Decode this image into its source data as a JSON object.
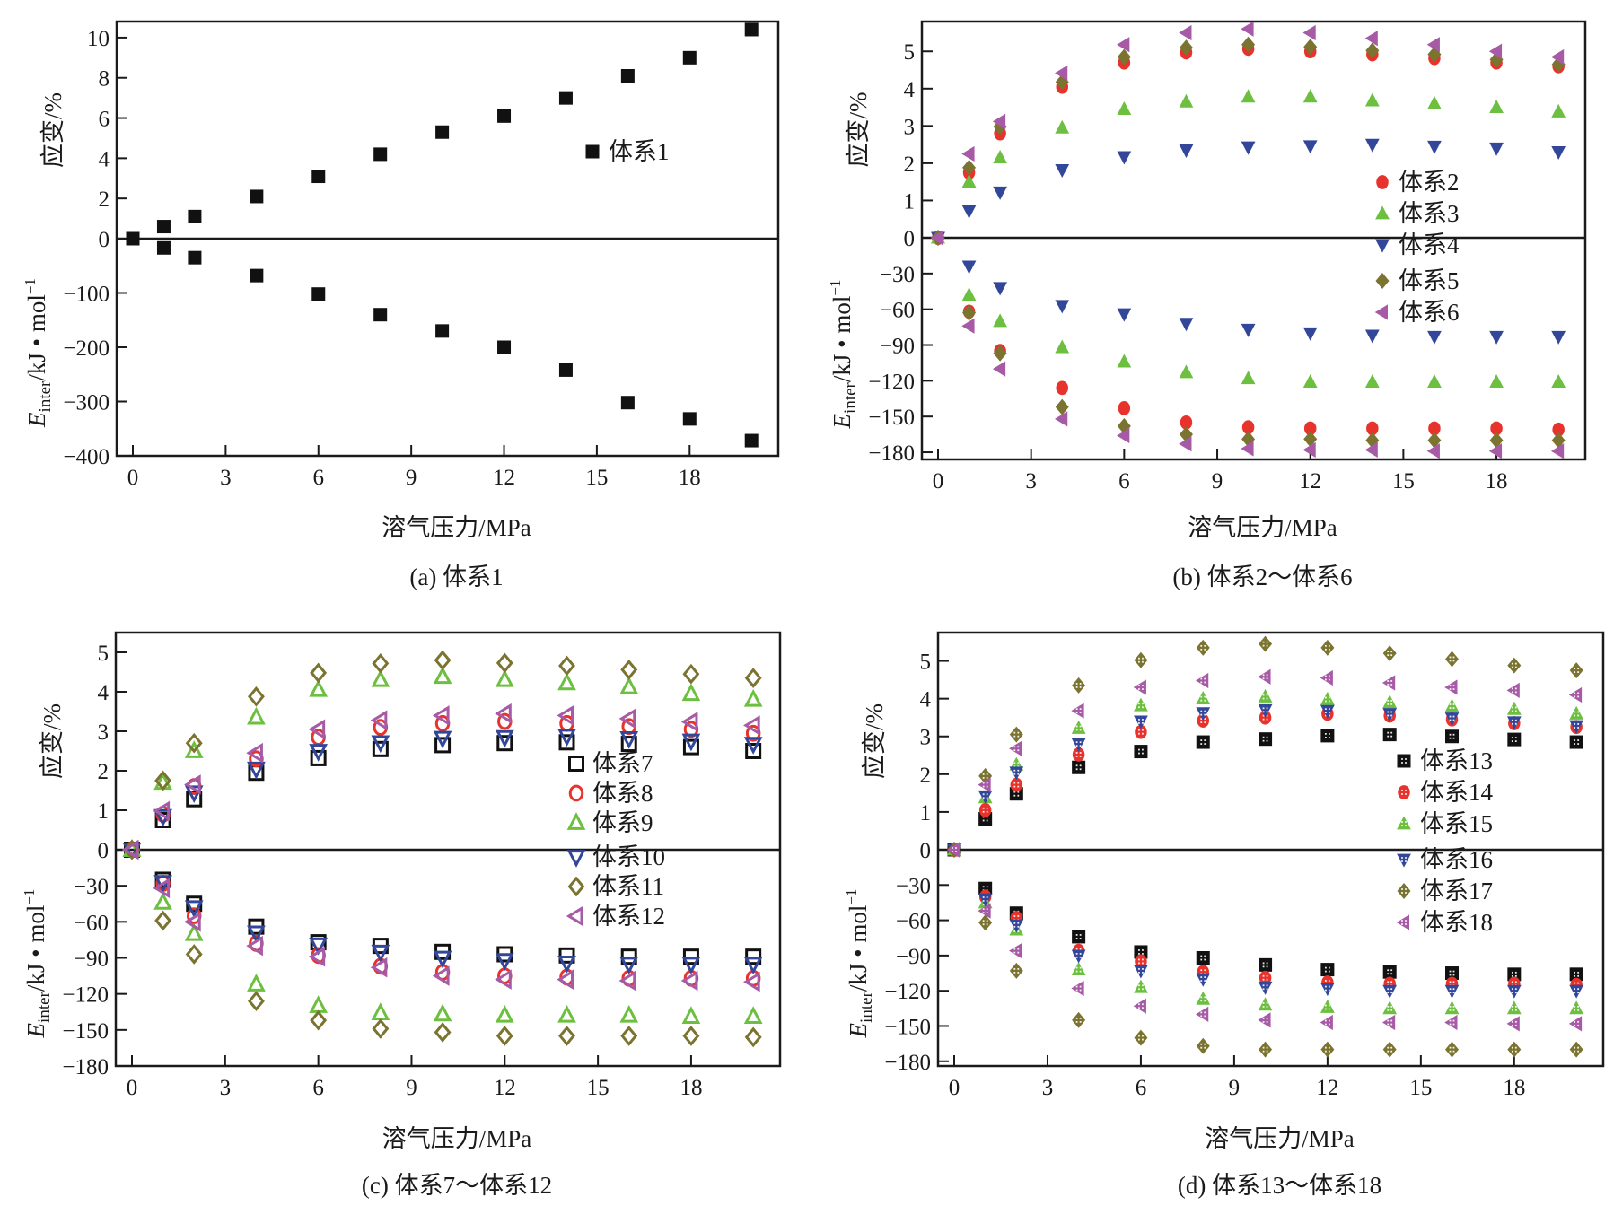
{
  "figure_title": "",
  "chart_data": [
    {
      "type": "scatter",
      "panel": "a",
      "caption": "(a) 体系1",
      "xlabel": "溶气压力/MPa",
      "ylabel_upper": "应变/%",
      "ylabel_lower": "E_inter/kJ・mol⁻¹",
      "ylabel_lower_main": "E",
      "ylabel_lower_sub": "inter",
      "ylabel_lower_rest": "/kJ • mol",
      "ylabel_lower_sup": "−1",
      "xlim": [
        -0.5,
        20.5
      ],
      "x_ticks": [
        0,
        3,
        6,
        9,
        12,
        15,
        18
      ],
      "x_tick_labels": [
        "0",
        "3",
        "6",
        "9",
        "12",
        "15",
        "18"
      ],
      "upper_ylim": [
        0,
        10.8
      ],
      "upper_y_ticks": [
        0,
        2,
        4,
        6,
        8,
        10
      ],
      "upper_y_tick_labels": [
        "0",
        "2",
        "4",
        "6",
        "8",
        "10"
      ],
      "lower_ylim": [
        -400,
        0
      ],
      "lower_y_ticks": [
        -100,
        -200,
        -300,
        -400
      ],
      "lower_y_tick_labels": [
        "−100",
        "−200",
        "−300",
        "−400"
      ],
      "legend_position": "center-right",
      "x": [
        0,
        1,
        2,
        4,
        6,
        8,
        10,
        12,
        14,
        16,
        18,
        20
      ],
      "series": [
        {
          "name": "体系1",
          "marker": "square-filled",
          "color": "#111111",
          "strain": [
            0,
            0.6,
            1.1,
            2.1,
            3.1,
            4.2,
            5.3,
            6.1,
            7.0,
            8.1,
            9.0,
            10.4
          ],
          "energy": [
            0,
            -17,
            -35,
            -68,
            -102,
            -140,
            -170,
            -200,
            -242,
            -302,
            -332,
            -372
          ]
        }
      ]
    },
    {
      "type": "scatter",
      "panel": "b",
      "caption": "(b) 体系2～体系6",
      "xlabel": "溶气压力/MPa",
      "ylabel_upper": "应变/%",
      "ylabel_lower_main": "E",
      "ylabel_lower_sub": "inter",
      "ylabel_lower_rest": "/kJ • mol",
      "ylabel_lower_sup": "−1",
      "xlim": [
        -0.5,
        20.5
      ],
      "x_ticks": [
        0,
        3,
        6,
        9,
        12,
        15,
        18
      ],
      "x_tick_labels": [
        "0",
        "3",
        "6",
        "9",
        "12",
        "15",
        "18"
      ],
      "upper_ylim": [
        0,
        5.8
      ],
      "upper_y_ticks": [
        0,
        1,
        2,
        3,
        4,
        5
      ],
      "upper_y_tick_labels": [
        "0",
        "1",
        "2",
        "3",
        "4",
        "5"
      ],
      "lower_ylim": [
        -186,
        0
      ],
      "lower_y_ticks": [
        -30,
        -60,
        -90,
        -120,
        -150,
        -180
      ],
      "lower_y_tick_labels": [
        "−30",
        "−60",
        "−90",
        "−120",
        "−150",
        "−180"
      ],
      "legend_position": "right-center",
      "x": [
        0,
        1,
        2,
        4,
        6,
        8,
        10,
        12,
        14,
        16,
        18,
        20
      ],
      "series": [
        {
          "name": "体系2",
          "marker": "circle-filled",
          "color": "#e8322c",
          "strain": [
            0,
            1.75,
            2.8,
            4.05,
            4.7,
            4.97,
            5.07,
            5.0,
            4.92,
            4.82,
            4.7,
            4.6
          ],
          "energy": [
            0,
            -62,
            -95,
            -126,
            -143,
            -155,
            -159,
            -160,
            -160,
            -160,
            -160,
            -161
          ]
        },
        {
          "name": "体系3",
          "marker": "triangle-up-filled",
          "color": "#6cbf3f",
          "strain": [
            0,
            1.5,
            2.15,
            2.95,
            3.45,
            3.65,
            3.78,
            3.78,
            3.68,
            3.6,
            3.5,
            3.38
          ],
          "energy": [
            0,
            -48,
            -70,
            -92,
            -104,
            -113,
            -118,
            -121,
            -121,
            -121,
            -121,
            -121
          ]
        },
        {
          "name": "体系4",
          "marker": "triangle-down-filled",
          "color": "#33479a",
          "strain": [
            0,
            0.72,
            1.22,
            1.82,
            2.17,
            2.35,
            2.43,
            2.46,
            2.5,
            2.45,
            2.4,
            2.3
          ],
          "energy": [
            0,
            -24,
            -42,
            -57,
            -64,
            -72,
            -77,
            -80,
            -82,
            -83,
            -83,
            -83
          ]
        },
        {
          "name": "体系5",
          "marker": "diamond-filled",
          "color": "#7b7430",
          "strain": [
            0,
            1.88,
            2.98,
            4.18,
            4.85,
            5.1,
            5.18,
            5.12,
            5.02,
            4.92,
            4.78,
            4.65
          ],
          "energy": [
            0,
            -63,
            -97,
            -142,
            -158,
            -165,
            -169,
            -169,
            -170,
            -170,
            -170,
            -170
          ]
        },
        {
          "name": "体系6",
          "marker": "triangle-left-filled",
          "color": "#a75aa6",
          "strain": [
            0,
            2.25,
            3.12,
            4.42,
            5.18,
            5.5,
            5.6,
            5.5,
            5.35,
            5.18,
            5.0,
            4.85
          ],
          "energy": [
            0,
            -74,
            -110,
            -152,
            -166,
            -173,
            -177,
            -178,
            -178,
            -179,
            -179,
            -179
          ]
        }
      ]
    },
    {
      "type": "scatter",
      "panel": "c",
      "caption": "(c) 体系7～体系12",
      "xlabel": "溶气压力/MPa",
      "ylabel_upper": "应变/%",
      "ylabel_lower_main": "E",
      "ylabel_lower_sub": "inter",
      "ylabel_lower_rest": "/kJ • mol",
      "ylabel_lower_sup": "−1",
      "xlim": [
        -0.5,
        20.5
      ],
      "x_ticks": [
        0,
        3,
        6,
        9,
        12,
        15,
        18
      ],
      "x_tick_labels": [
        "0",
        "3",
        "6",
        "9",
        "12",
        "15",
        "18"
      ],
      "upper_ylim": [
        0,
        5.5
      ],
      "upper_y_ticks": [
        0,
        1,
        2,
        3,
        4,
        5
      ],
      "upper_y_tick_labels": [
        "0",
        "1",
        "2",
        "3",
        "4",
        "5"
      ],
      "lower_ylim": [
        -180,
        0
      ],
      "lower_y_ticks": [
        -30,
        -60,
        -90,
        -120,
        -150,
        -180
      ],
      "lower_y_tick_labels": [
        "−30",
        "−60",
        "−90",
        "−120",
        "−150",
        "−180"
      ],
      "legend_position": "right-center",
      "x": [
        0,
        1,
        2,
        4,
        6,
        8,
        10,
        12,
        14,
        16,
        18,
        20
      ],
      "series": [
        {
          "name": "体系7",
          "marker": "square-open",
          "color": "#111111",
          "strain": [
            0,
            0.75,
            1.28,
            1.95,
            2.32,
            2.55,
            2.65,
            2.7,
            2.72,
            2.68,
            2.6,
            2.5
          ],
          "energy": [
            0,
            -25,
            -45,
            -64,
            -77,
            -80,
            -85,
            -87,
            -88,
            -89,
            -89,
            -89
          ]
        },
        {
          "name": "体系8",
          "marker": "circle-open",
          "color": "#e8322c",
          "strain": [
            0,
            0.9,
            1.6,
            2.3,
            2.85,
            3.1,
            3.2,
            3.25,
            3.2,
            3.12,
            3.05,
            2.95
          ],
          "energy": [
            0,
            -28,
            -55,
            -78,
            -88,
            -97,
            -102,
            -105,
            -106,
            -107,
            -107,
            -107
          ]
        },
        {
          "name": "体系9",
          "marker": "triangle-up-open",
          "color": "#6cbf3f",
          "strain": [
            0,
            1.7,
            2.5,
            3.35,
            4.05,
            4.3,
            4.38,
            4.3,
            4.22,
            4.12,
            3.95,
            3.8
          ],
          "energy": [
            0,
            -44,
            -70,
            -112,
            -130,
            -136,
            -137,
            -138,
            -138,
            -138,
            -139,
            -139
          ]
        },
        {
          "name": "体系10",
          "marker": "triangle-down-open",
          "color": "#33479a",
          "strain": [
            0,
            0.85,
            1.45,
            2.05,
            2.5,
            2.72,
            2.83,
            2.85,
            2.88,
            2.82,
            2.76,
            2.68
          ],
          "energy": [
            0,
            -27,
            -48,
            -69,
            -79,
            -85,
            -90,
            -92,
            -94,
            -95,
            -95,
            -95
          ]
        },
        {
          "name": "体系11",
          "marker": "diamond-open",
          "color": "#7b7430",
          "strain": [
            0,
            1.75,
            2.7,
            3.88,
            4.48,
            4.72,
            4.8,
            4.73,
            4.66,
            4.56,
            4.45,
            4.35
          ],
          "energy": [
            0,
            -59,
            -87,
            -126,
            -142,
            -149,
            -152,
            -155,
            -155,
            -155,
            -155,
            -156
          ]
        },
        {
          "name": "体系12",
          "marker": "triangle-left-open",
          "color": "#a75aa6",
          "strain": [
            0,
            0.98,
            1.65,
            2.45,
            3.05,
            3.28,
            3.4,
            3.45,
            3.4,
            3.32,
            3.24,
            3.15
          ],
          "energy": [
            0,
            -32,
            -60,
            -80,
            -89,
            -98,
            -105,
            -108,
            -108,
            -109,
            -109,
            -110
          ]
        }
      ]
    },
    {
      "type": "scatter",
      "panel": "d",
      "caption": "(d) 体系13～体系18",
      "xlabel": "溶气压力/MPa",
      "ylabel_upper": "应变/%",
      "ylabel_lower_main": "E",
      "ylabel_lower_sub": "inter",
      "ylabel_lower_rest": "/kJ • mol",
      "ylabel_lower_sup": "−1",
      "xlim": [
        -0.5,
        20.5
      ],
      "x_ticks": [
        0,
        3,
        6,
        9,
        12,
        15,
        18
      ],
      "x_tick_labels": [
        "0",
        "3",
        "6",
        "9",
        "12",
        "15",
        "18"
      ],
      "upper_ylim": [
        0,
        5.75
      ],
      "upper_y_ticks": [
        0,
        1,
        2,
        3,
        4,
        5
      ],
      "upper_y_tick_labels": [
        "0",
        "1",
        "2",
        "3",
        "4",
        "5"
      ],
      "lower_ylim": [
        -184,
        0
      ],
      "lower_y_ticks": [
        -30,
        -60,
        -90,
        -120,
        -150,
        -180
      ],
      "lower_y_tick_labels": [
        "−30",
        "−60",
        "−90",
        "−120",
        "−150",
        "−180"
      ],
      "legend_position": "right-center",
      "x": [
        0,
        1,
        2,
        4,
        6,
        8,
        10,
        12,
        14,
        16,
        18,
        20
      ],
      "series": [
        {
          "name": "体系13",
          "marker": "square-filled-dotted",
          "color": "#111111",
          "strain": [
            0,
            0.82,
            1.48,
            2.18,
            2.6,
            2.85,
            2.93,
            3.02,
            3.05,
            3.0,
            2.92,
            2.85
          ],
          "energy": [
            0,
            -33,
            -54,
            -74,
            -87,
            -92,
            -98,
            -102,
            -104,
            -105,
            -106,
            -106
          ]
        },
        {
          "name": "体系14",
          "marker": "circle-filled-dotted",
          "color": "#e8322c",
          "strain": [
            0,
            1.05,
            1.72,
            2.52,
            3.12,
            3.42,
            3.5,
            3.6,
            3.55,
            3.45,
            3.35,
            3.25
          ],
          "energy": [
            0,
            -40,
            -58,
            -86,
            -95,
            -104,
            -109,
            -113,
            -114,
            -114,
            -114,
            -115
          ]
        },
        {
          "name": "体系15",
          "marker": "triangle-up-filled-dotted",
          "color": "#6cbf3f",
          "strain": [
            0,
            1.38,
            2.25,
            3.22,
            3.82,
            4.0,
            4.05,
            3.98,
            3.9,
            3.8,
            3.72,
            3.6
          ],
          "energy": [
            0,
            -45,
            -68,
            -102,
            -117,
            -127,
            -132,
            -134,
            -135,
            -135,
            -135,
            -135
          ]
        },
        {
          "name": "体系16",
          "marker": "triangle-down-filled-dotted",
          "color": "#33479a",
          "strain": [
            0,
            1.42,
            2.05,
            2.8,
            3.4,
            3.62,
            3.7,
            3.68,
            3.6,
            3.48,
            3.38,
            3.28
          ],
          "energy": [
            0,
            -42,
            -64,
            -90,
            -103,
            -110,
            -117,
            -118,
            -120,
            -120,
            -120,
            -120
          ]
        },
        {
          "name": "体系17",
          "marker": "diamond-filled-dotted",
          "color": "#7b7430",
          "strain": [
            0,
            1.95,
            3.05,
            4.35,
            5.02,
            5.35,
            5.45,
            5.35,
            5.2,
            5.05,
            4.88,
            4.75
          ],
          "energy": [
            0,
            -62,
            -103,
            -145,
            -160,
            -167,
            -170,
            -170,
            -170,
            -170,
            -170,
            -170
          ]
        },
        {
          "name": "体系18",
          "marker": "triangle-left-filled-dotted",
          "color": "#a75aa6",
          "strain": [
            0,
            1.72,
            2.68,
            3.68,
            4.3,
            4.48,
            4.58,
            4.55,
            4.42,
            4.3,
            4.22,
            4.1
          ],
          "energy": [
            0,
            -52,
            -86,
            -118,
            -133,
            -140,
            -145,
            -147,
            -147,
            -147,
            -148,
            -148
          ]
        }
      ]
    }
  ]
}
